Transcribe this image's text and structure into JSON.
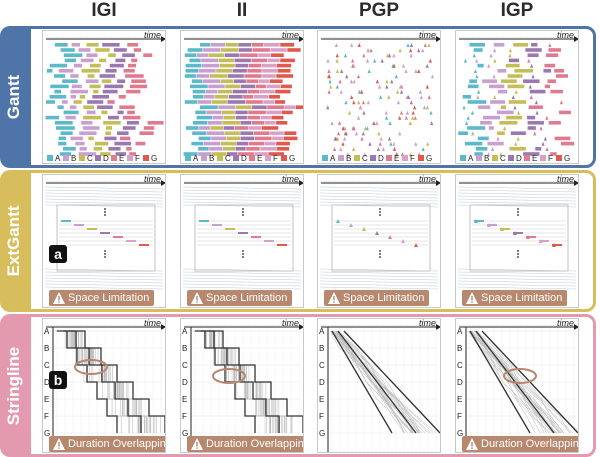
{
  "columns": [
    "IGI",
    "II",
    "PGP",
    "IGP"
  ],
  "rows": [
    {
      "label": "Gantt",
      "color": "#4f74a7",
      "band": "#4f74a7"
    },
    {
      "label": "ExtGantt",
      "color": "#d8bd5c",
      "band": "#d8bd5c"
    },
    {
      "label": "Stringline",
      "color": "#e39aae",
      "band": "#e39aae"
    }
  ],
  "time_label": "time",
  "gantt_legend": [
    "A",
    "B",
    "C",
    "D",
    "E",
    "F",
    "G"
  ],
  "legend_colors": [
    "#5bb9c9",
    "#c89fd0",
    "#c4bd58",
    "#9c78b3",
    "#e07b8f",
    "#d9a0c8",
    "#dd5a4c"
  ],
  "stations": [
    "A",
    "B",
    "C",
    "D",
    "E",
    "F",
    "G"
  ],
  "ext_badge": "Space Limitation",
  "string_badge": "Duration Overlapping",
  "marker_a": "a",
  "marker_b": "b"
}
